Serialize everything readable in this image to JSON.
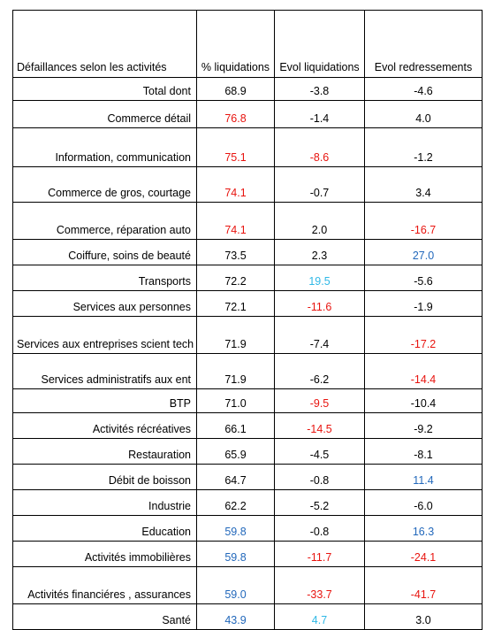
{
  "headers": [
    "Défaillances selon les activités",
    "% liquidations",
    "Evol liquidations",
    "Evol redressements"
  ],
  "rows": [
    {
      "activity": "Total dont",
      "liq": "68.9",
      "evol_liq": "-3.8",
      "evol_red": "-4.6",
      "colors": [
        "black",
        "black",
        "black"
      ]
    },
    {
      "activity": "Commerce détail",
      "liq": "76.8",
      "evol_liq": "-1.4",
      "evol_red": "4.0",
      "colors": [
        "red",
        "black",
        "black"
      ]
    },
    {
      "activity": "Information, communication",
      "liq": "75.1",
      "evol_liq": "-8.6",
      "evol_red": "-1.2",
      "colors": [
        "red",
        "red",
        "black"
      ]
    },
    {
      "activity": "Commerce de gros, courtage",
      "liq": "74.1",
      "evol_liq": "-0.7",
      "evol_red": "3.4",
      "colors": [
        "red",
        "black",
        "black"
      ]
    },
    {
      "activity": "Commerce, réparation auto",
      "liq": "74.1",
      "evol_liq": "2.0",
      "evol_red": "-16.7",
      "colors": [
        "red",
        "black",
        "red"
      ]
    },
    {
      "activity": "Coiffure, soins de beauté",
      "liq": "73.5",
      "evol_liq": "2.3",
      "evol_red": "27.0",
      "colors": [
        "black",
        "black",
        "blue"
      ]
    },
    {
      "activity": "Transports",
      "liq": "72.2",
      "evol_liq": "19.5",
      "evol_red": "-5.6",
      "colors": [
        "black",
        "cyan",
        "black"
      ]
    },
    {
      "activity": "Services aux personnes",
      "liq": "72.1",
      "evol_liq": "-11.6",
      "evol_red": "-1.9",
      "colors": [
        "black",
        "red",
        "black"
      ]
    },
    {
      "activity": "Services aux entreprises scient tech",
      "liq": "71.9",
      "evol_liq": "-7.4",
      "evol_red": "-17.2",
      "colors": [
        "black",
        "black",
        "red"
      ]
    },
    {
      "activity": "Services administratifs aux ent",
      "liq": "71.9",
      "evol_liq": "-6.2",
      "evol_red": "-14.4",
      "colors": [
        "black",
        "black",
        "red"
      ]
    },
    {
      "activity": "BTP",
      "liq": "71.0",
      "evol_liq": "-9.5",
      "evol_red": "-10.4",
      "colors": [
        "black",
        "red",
        "black"
      ]
    },
    {
      "activity": "Activités récréatives",
      "liq": "66.1",
      "evol_liq": "-14.5",
      "evol_red": "-9.2",
      "colors": [
        "black",
        "red",
        "black"
      ]
    },
    {
      "activity": "Restauration",
      "liq": "65.9",
      "evol_liq": "-4.5",
      "evol_red": "-8.1",
      "colors": [
        "black",
        "black",
        "black"
      ]
    },
    {
      "activity": "Débit de boisson",
      "liq": "64.7",
      "evol_liq": "-0.8",
      "evol_red": "11.4",
      "colors": [
        "black",
        "black",
        "blue"
      ]
    },
    {
      "activity": "Industrie",
      "liq": "62.2",
      "evol_liq": "-5.2",
      "evol_red": "-6.0",
      "colors": [
        "black",
        "black",
        "black"
      ]
    },
    {
      "activity": "Education",
      "liq": "59.8",
      "evol_liq": "-0.8",
      "evol_red": "16.3",
      "colors": [
        "blue",
        "black",
        "blue"
      ]
    },
    {
      "activity": "Activités immobilières",
      "liq": "59.8",
      "evol_liq": "-11.7",
      "evol_red": "-24.1",
      "colors": [
        "blue",
        "red",
        "red"
      ]
    },
    {
      "activity": "Activités financiéres , assurances",
      "liq": "59.0",
      "evol_liq": "-33.7",
      "evol_red": "-41.7",
      "colors": [
        "blue",
        "red",
        "red"
      ]
    },
    {
      "activity": "Santé",
      "liq": "43.9",
      "evol_liq": "4.7",
      "evol_red": "3.0",
      "colors": [
        "blue",
        "cyan",
        "black"
      ]
    }
  ]
}
